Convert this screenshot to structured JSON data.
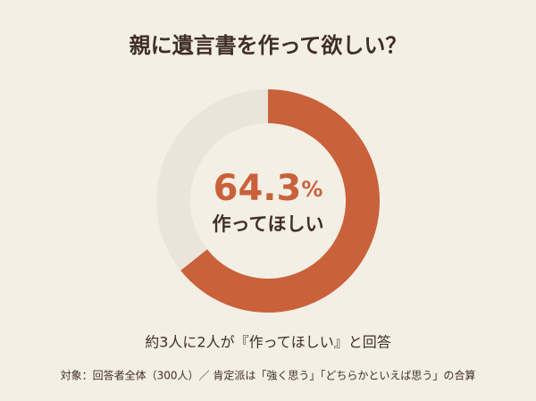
{
  "chart_data": {
    "type": "donut",
    "title": "親に遺言書を作って欲しい？",
    "categories": [
      "作ってほしい",
      null
    ],
    "values": [
      64.3,
      35.7
    ],
    "value_labels": [
      "64.3%",
      null
    ],
    "colors": [
      "#c9613a",
      "#ebe4d8"
    ],
    "caption": "約3人に2人が『作ってほしい』と回答",
    "footnote": "対象：回答者全体（300人）／ 肯定派は「強く思う」「どちらかといえば思う」の合算"
  }
}
